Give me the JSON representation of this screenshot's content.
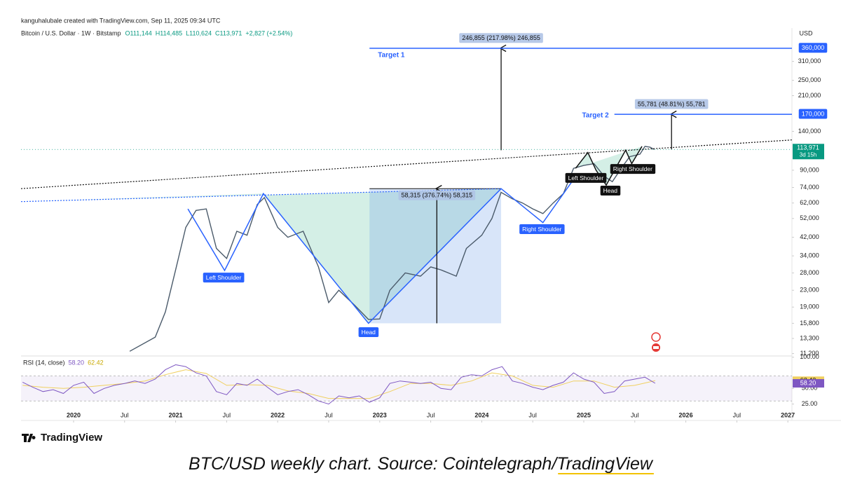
{
  "header": {
    "credit": "kanguhalubale created with TradingView.com, Sep 11, 2025 09:34 UTC",
    "symbol": "Bitcoin / U.S. Dollar · 1W · Bitstamp",
    "open": "O111,144",
    "high": "H114,485",
    "low": "L110,624",
    "close": "C113,971",
    "change": "+2,827 (+2.54%)",
    "currency": "USD"
  },
  "chart_data": {
    "type": "line",
    "log_scale": true,
    "grid": false,
    "x": [
      2020.55,
      2020.8,
      2020.9,
      2021.0,
      2021.1,
      2021.2,
      2021.3,
      2021.4,
      2021.5,
      2021.6,
      2021.7,
      2021.8,
      2021.87,
      2022.0,
      2022.1,
      2022.25,
      2022.4,
      2022.5,
      2022.6,
      2022.75,
      2022.89,
      2023.0,
      2023.1,
      2023.25,
      2023.4,
      2023.5,
      2023.6,
      2023.75,
      2023.85,
      2024.0,
      2024.1,
      2024.19,
      2024.3,
      2024.4,
      2024.5,
      2024.6,
      2024.7,
      2024.8,
      2024.9,
      2025.0,
      2025.1,
      2025.2,
      2025.28,
      2025.38,
      2025.45,
      2025.55,
      2025.6,
      2025.65,
      2025.69
    ],
    "series": [
      {
        "color": "#4a5a6a",
        "values": [
          11500,
          13500,
          18000,
          29000,
          47000,
          57000,
          58000,
          37000,
          33000,
          45000,
          43000,
          61000,
          66000,
          47000,
          42000,
          45000,
          30000,
          20000,
          23000,
          19500,
          16500,
          16600,
          23000,
          28000,
          27000,
          30000,
          29000,
          27000,
          37000,
          43000,
          52000,
          70000,
          65000,
          62000,
          58000,
          55000,
          62000,
          69000,
          92000,
          95000,
          97000,
          84000,
          79000,
          94000,
          105000,
          108000,
          118000,
          117000,
          113971
        ]
      }
    ],
    "xlim": [
      2019.485,
      2027.04
    ],
    "xticks": [
      {
        "value": 2020,
        "label": "2020"
      },
      {
        "value": 2020.5,
        "label": "Jul"
      },
      {
        "value": 2021,
        "label": "2021"
      },
      {
        "value": 2021.5,
        "label": "Jul"
      },
      {
        "value": 2022,
        "label": "2022"
      },
      {
        "value": 2022.5,
        "label": "Jul"
      },
      {
        "value": 2023,
        "label": "2023"
      },
      {
        "value": 2023.5,
        "label": "Jul"
      },
      {
        "value": 2024,
        "label": "2024"
      },
      {
        "value": 2024.5,
        "label": "Jul"
      },
      {
        "value": 2025,
        "label": "2025"
      },
      {
        "value": 2025.5,
        "label": "Jul"
      },
      {
        "value": 2026,
        "label": "2026"
      },
      {
        "value": 2026.5,
        "label": "Jul"
      },
      {
        "value": 2027,
        "label": "2027"
      }
    ],
    "ylim": [
      10900,
      453000
    ],
    "yticks": [
      {
        "value": 310000,
        "label": "310,000"
      },
      {
        "value": 250000,
        "label": "250,000"
      },
      {
        "value": 210000,
        "label": "210,000"
      },
      {
        "value": 140000,
        "label": "140,000"
      },
      {
        "value": 90000,
        "label": "90,000"
      },
      {
        "value": 74000,
        "label": "74,000"
      },
      {
        "value": 62000,
        "label": "62,000"
      },
      {
        "value": 52000,
        "label": "52,000"
      },
      {
        "value": 42000,
        "label": "42,000"
      },
      {
        "value": 34000,
        "label": "34,000"
      },
      {
        "value": 28000,
        "label": "28,000"
      },
      {
        "value": 23000,
        "label": "23,000"
      },
      {
        "value": 19000,
        "label": "19,000"
      },
      {
        "value": 15800,
        "label": "15,800"
      },
      {
        "value": 13300,
        "label": "13,300"
      },
      {
        "value": 11200,
        "label": "11,200"
      }
    ],
    "last_price": {
      "value": 113971,
      "label": "113,971",
      "countdown": "3d 15h",
      "color": "#089981"
    },
    "fills": [
      {
        "color": "#d4efe6",
        "x": [
          2019.485,
          2021.86,
          2022.89,
          2024.19
        ],
        "values": [
          63000,
          69000,
          15800,
          73000
        ]
      },
      {
        "color": "#d4efe6",
        "x": [
          2024.92,
          2025.04,
          2025.12,
          2025.22,
          2025.41,
          2025.47,
          2025.57
        ],
        "values": [
          92000,
          110000,
          90000,
          76000,
          113000,
          97000,
          118000
        ]
      }
    ],
    "patterns": [
      {
        "color": "#2962ff",
        "style": "solid",
        "x": [
          2021.12,
          2021.48,
          2021.86,
          2022.89,
          2024.19,
          2024.6,
          2024.88
        ],
        "values": [
          58000,
          28800,
          69000,
          15800,
          73000,
          49600,
          78500
        ]
      },
      {
        "color": "#111111",
        "style": "solid",
        "x": [
          2024.92,
          2025.04,
          2025.12,
          2025.22,
          2025.41,
          2025.47,
          2025.57
        ],
        "values": [
          92000,
          110000,
          90000,
          76000,
          113000,
          97000,
          118000
        ]
      },
      {
        "color": "#111111",
        "style": "dotted",
        "x": [
          2019.485,
          2027.04
        ],
        "values": [
          73000,
          127000
        ]
      },
      {
        "color": "#2962ff",
        "style": "dotted",
        "x": [
          2019.485,
          2024.19
        ],
        "values": [
          63000,
          73000
        ]
      }
    ],
    "labels": [
      {
        "text": "Left Shoulder",
        "x": 2021.47,
        "value": 26400,
        "color": "#2962ff"
      },
      {
        "text": "Head",
        "x": 2022.89,
        "value": 14200,
        "color": "#2962ff"
      },
      {
        "text": "Right Shoulder",
        "x": 2024.59,
        "value": 45800,
        "color": "#2962ff"
      },
      {
        "text": "Left Shoulder",
        "x": 2025.02,
        "value": 82000,
        "color": "#111111"
      },
      {
        "text": "Head",
        "x": 2025.26,
        "value": 71000,
        "color": "#111111"
      },
      {
        "text": "Right Shoulder",
        "x": 2025.48,
        "value": 90800,
        "color": "#111111"
      }
    ],
    "targets": [
      {
        "label": "Target 1",
        "value": 360000,
        "tag": "360,000",
        "x0": 2022.9,
        "label_side": "below"
      },
      {
        "label": "Target 2",
        "value": 170000,
        "tag": "170,000",
        "x0": 2025.3,
        "label_side": "left"
      }
    ],
    "measures": [
      {
        "label": "58,315 (376.74%) 58,315",
        "box": true,
        "x": [
          2022.9,
          2024.19
        ],
        "arrow_x": 2023.56,
        "values": [
          15800,
          73000
        ]
      },
      {
        "label": "246,855 (217.98%) 246,855",
        "box": false,
        "arrow_x": 2024.19,
        "values": [
          113000,
          360000
        ]
      },
      {
        "label": "55,781 (48.81%) 55,781",
        "box": false,
        "arrow_x": 2025.86,
        "values": [
          114000,
          170000
        ]
      }
    ],
    "rsi": {
      "title": "RSI (14, close)",
      "value": 58.2,
      "value_label": "58.20",
      "ma": 62.42,
      "color": "#7e57c2",
      "ma_color": "#f0d060",
      "band": [
        30,
        70
      ],
      "ylim": [
        10,
        102
      ],
      "yticks": [
        {
          "value": 100,
          "label": "100.00"
        },
        {
          "value": 50,
          "label": "50.00"
        },
        {
          "value": 25,
          "label": "25.00"
        }
      ],
      "x": [
        2019.5,
        2019.6,
        2019.7,
        2019.8,
        2019.9,
        2020.0,
        2020.1,
        2020.2,
        2020.3,
        2020.4,
        2020.5,
        2020.6,
        2020.7,
        2020.8,
        2020.9,
        2021.0,
        2021.1,
        2021.2,
        2021.3,
        2021.4,
        2021.5,
        2021.6,
        2021.7,
        2021.8,
        2021.9,
        2022.0,
        2022.1,
        2022.2,
        2022.3,
        2022.4,
        2022.5,
        2022.6,
        2022.7,
        2022.8,
        2022.9,
        2023.0,
        2023.1,
        2023.2,
        2023.3,
        2023.4,
        2023.5,
        2023.6,
        2023.7,
        2023.8,
        2023.9,
        2024.0,
        2024.1,
        2024.2,
        2024.3,
        2024.4,
        2024.5,
        2024.6,
        2024.7,
        2024.8,
        2024.9,
        2025.0,
        2025.1,
        2025.2,
        2025.3,
        2025.4,
        2025.5,
        2025.6,
        2025.7
      ],
      "values": [
        60,
        52,
        45,
        48,
        42,
        55,
        60,
        42,
        50,
        55,
        58,
        62,
        58,
        65,
        80,
        88,
        85,
        75,
        70,
        45,
        40,
        58,
        55,
        65,
        52,
        40,
        45,
        48,
        40,
        30,
        25,
        38,
        35,
        38,
        28,
        35,
        58,
        62,
        60,
        58,
        60,
        50,
        48,
        68,
        72,
        70,
        80,
        85,
        62,
        58,
        52,
        48,
        55,
        60,
        75,
        65,
        60,
        42,
        45,
        62,
        65,
        68,
        58.2
      ],
      "ma_x": [
        2019.5,
        2019.7,
        2019.9,
        2020.1,
        2020.3,
        2020.5,
        2020.7,
        2020.9,
        2021.1,
        2021.3,
        2021.5,
        2021.7,
        2021.9,
        2022.1,
        2022.3,
        2022.5,
        2022.7,
        2022.9,
        2023.1,
        2023.3,
        2023.5,
        2023.7,
        2023.9,
        2024.1,
        2024.3,
        2024.5,
        2024.7,
        2024.9,
        2025.1,
        2025.3,
        2025.5,
        2025.7
      ],
      "ma_values": [
        55,
        52,
        50,
        52,
        55,
        58,
        62,
        72,
        80,
        74,
        55,
        56,
        55,
        46,
        42,
        34,
        34,
        34,
        45,
        58,
        58,
        55,
        62,
        75,
        70,
        55,
        52,
        62,
        62,
        52,
        55,
        62.42
      ]
    }
  },
  "footer": {
    "brand": "TradingView",
    "caption": "BTC/USD weekly chart. Source: Cointelegraph/",
    "caption_link": "TradingView"
  }
}
